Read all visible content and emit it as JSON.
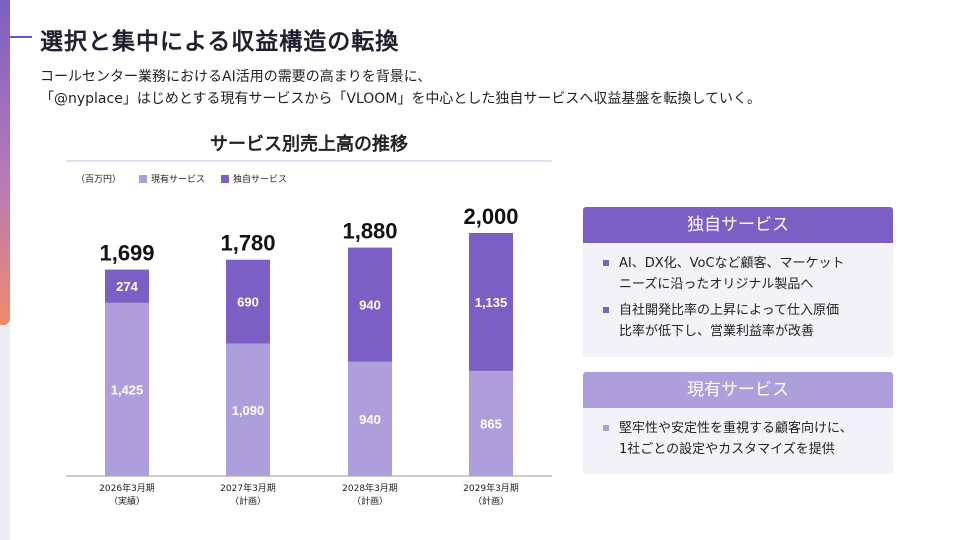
{
  "page": {
    "title": "選択と集中による収益構造の転換",
    "description_line1": "コールセンター業務におけるAI活用の需要の高まりを背景に、",
    "description_line2": "「@nyplace」はじめとする現有サービスから「VLOOM」を中心とした独自サービスへ収益基盤を転換していく。"
  },
  "colors": {
    "existing": "#ae9edb",
    "proprietary": "#7b5fc4",
    "accent": "#6f52bd"
  },
  "chart_data": {
    "type": "bar",
    "stacked": true,
    "title": "サービス別売上高の推移",
    "unit": "（百万円）",
    "categories": [
      [
        "2026年3月期",
        "（実績）"
      ],
      [
        "2027年3月期",
        "（計画）"
      ],
      [
        "2028年3月期",
        "（計画）"
      ],
      [
        "2029年3月期",
        "（計画）"
      ]
    ],
    "series": [
      {
        "name": "現有サービス",
        "values": [
          1425,
          1090,
          940,
          865
        ]
      },
      {
        "name": "独自サービス",
        "values": [
          274,
          690,
          940,
          1135
        ]
      }
    ],
    "totals": [
      "1,699",
      "1,780",
      "1,880",
      "2,000"
    ],
    "ylim": [
      0,
      2000
    ],
    "legend": "top-left",
    "grid": false
  },
  "cards": {
    "proprietary": {
      "title": "独自サービス",
      "bullets": [
        [
          "AI、DX化、VoCなど顧客、マーケット",
          "ニーズに沿ったオリジナル製品へ"
        ],
        [
          "自社開発比率の上昇によって仕入原価",
          "比率が低下し、営業利益率が改善"
        ]
      ]
    },
    "existing": {
      "title": "現有サービス",
      "bullets": [
        [
          "堅牢性や安定性を重視する顧客向けに、",
          "1社ごとの設定やカスタマイズを提供"
        ]
      ]
    }
  }
}
